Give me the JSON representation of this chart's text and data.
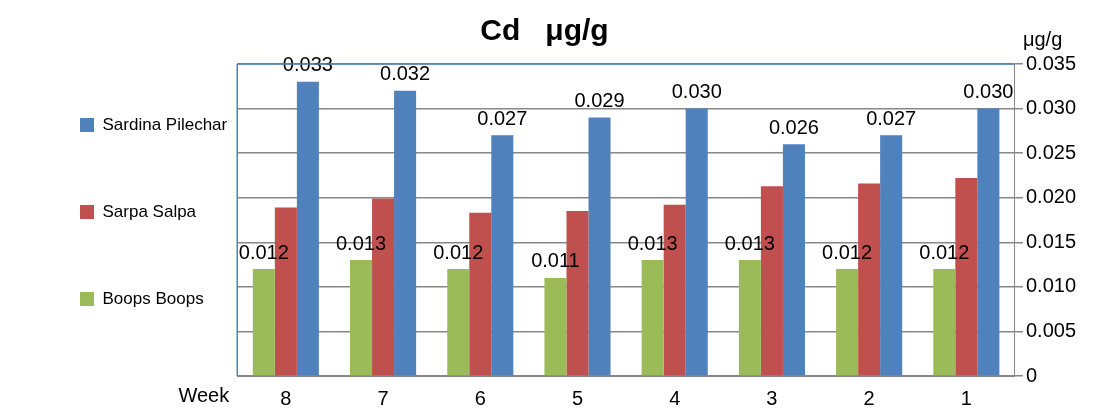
{
  "chart_data": {
    "type": "bar",
    "title": "Cd   μg/g",
    "xlabel": "Week",
    "ylabel": "μg/g",
    "categories": [
      "8",
      "7",
      "6",
      "5",
      "4",
      "3",
      "2",
      "1"
    ],
    "series": [
      {
        "name": "Boops Boops",
        "color": "#9bbb59",
        "values": [
          0.012,
          0.013,
          0.012,
          0.011,
          0.013,
          0.013,
          0.012,
          0.012
        ],
        "value_labels": [
          "0.012",
          "0.013",
          "0.012",
          "0.011",
          "0.013",
          "0.013",
          "0.012",
          "0.012"
        ]
      },
      {
        "name": "Sarpa Salpa",
        "color": "#c0504d",
        "values": [
          0.0189,
          0.0199,
          0.0183,
          0.0185,
          0.0192,
          0.0213,
          0.0216,
          0.0222
        ]
      },
      {
        "name": "Sardina Pilechar",
        "color": "#4f81bd",
        "values": [
          0.033,
          0.032,
          0.027,
          0.029,
          0.03,
          0.026,
          0.027,
          0.03
        ],
        "value_labels": [
          "0.033",
          "0.032",
          "0.027",
          "0.029",
          "0.030",
          "0.026",
          "0.027",
          "0.030"
        ]
      }
    ],
    "ylim": [
      0,
      0.035
    ],
    "yticks": [
      0,
      {
        "value": 0.005,
        "label": "0.005"
      },
      {
        "value": 0.01,
        "label": "0.010"
      },
      {
        "value": 0.015,
        "label": "0.015"
      },
      {
        "value": 0.02,
        "label": "0.020"
      },
      {
        "value": 0.025,
        "label": "0.025"
      },
      {
        "value": 0.03,
        "label": "0.030"
      },
      {
        "value": 0.035,
        "label": "0.035"
      }
    ],
    "grid": "y",
    "legend": "left"
  }
}
